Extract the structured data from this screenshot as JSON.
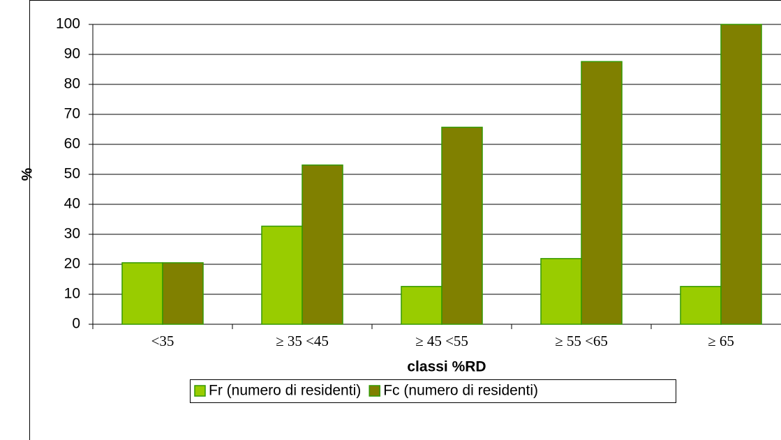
{
  "chart_data": {
    "type": "bar",
    "categories": [
      "<35",
      "≥ 35 <45",
      "≥ 45 <55",
      "≥ 55 <65",
      "≥ 65"
    ],
    "series": [
      {
        "name": "Fr (numero di residenti)",
        "color": "#99cc00",
        "values": [
          20.5,
          32.7,
          12.6,
          21.9,
          12.6
        ]
      },
      {
        "name": "Fc (numero di residenti)",
        "color": "#808000",
        "values": [
          20.5,
          53.1,
          65.7,
          87.6,
          100
        ]
      }
    ],
    "xlabel": "classi %RD",
    "ylabel": "%",
    "ylim": [
      0,
      100
    ],
    "yticks": [
      0,
      10,
      20,
      30,
      40,
      50,
      60,
      70,
      80,
      90,
      100
    ],
    "grid": true,
    "legend": "bottom"
  }
}
